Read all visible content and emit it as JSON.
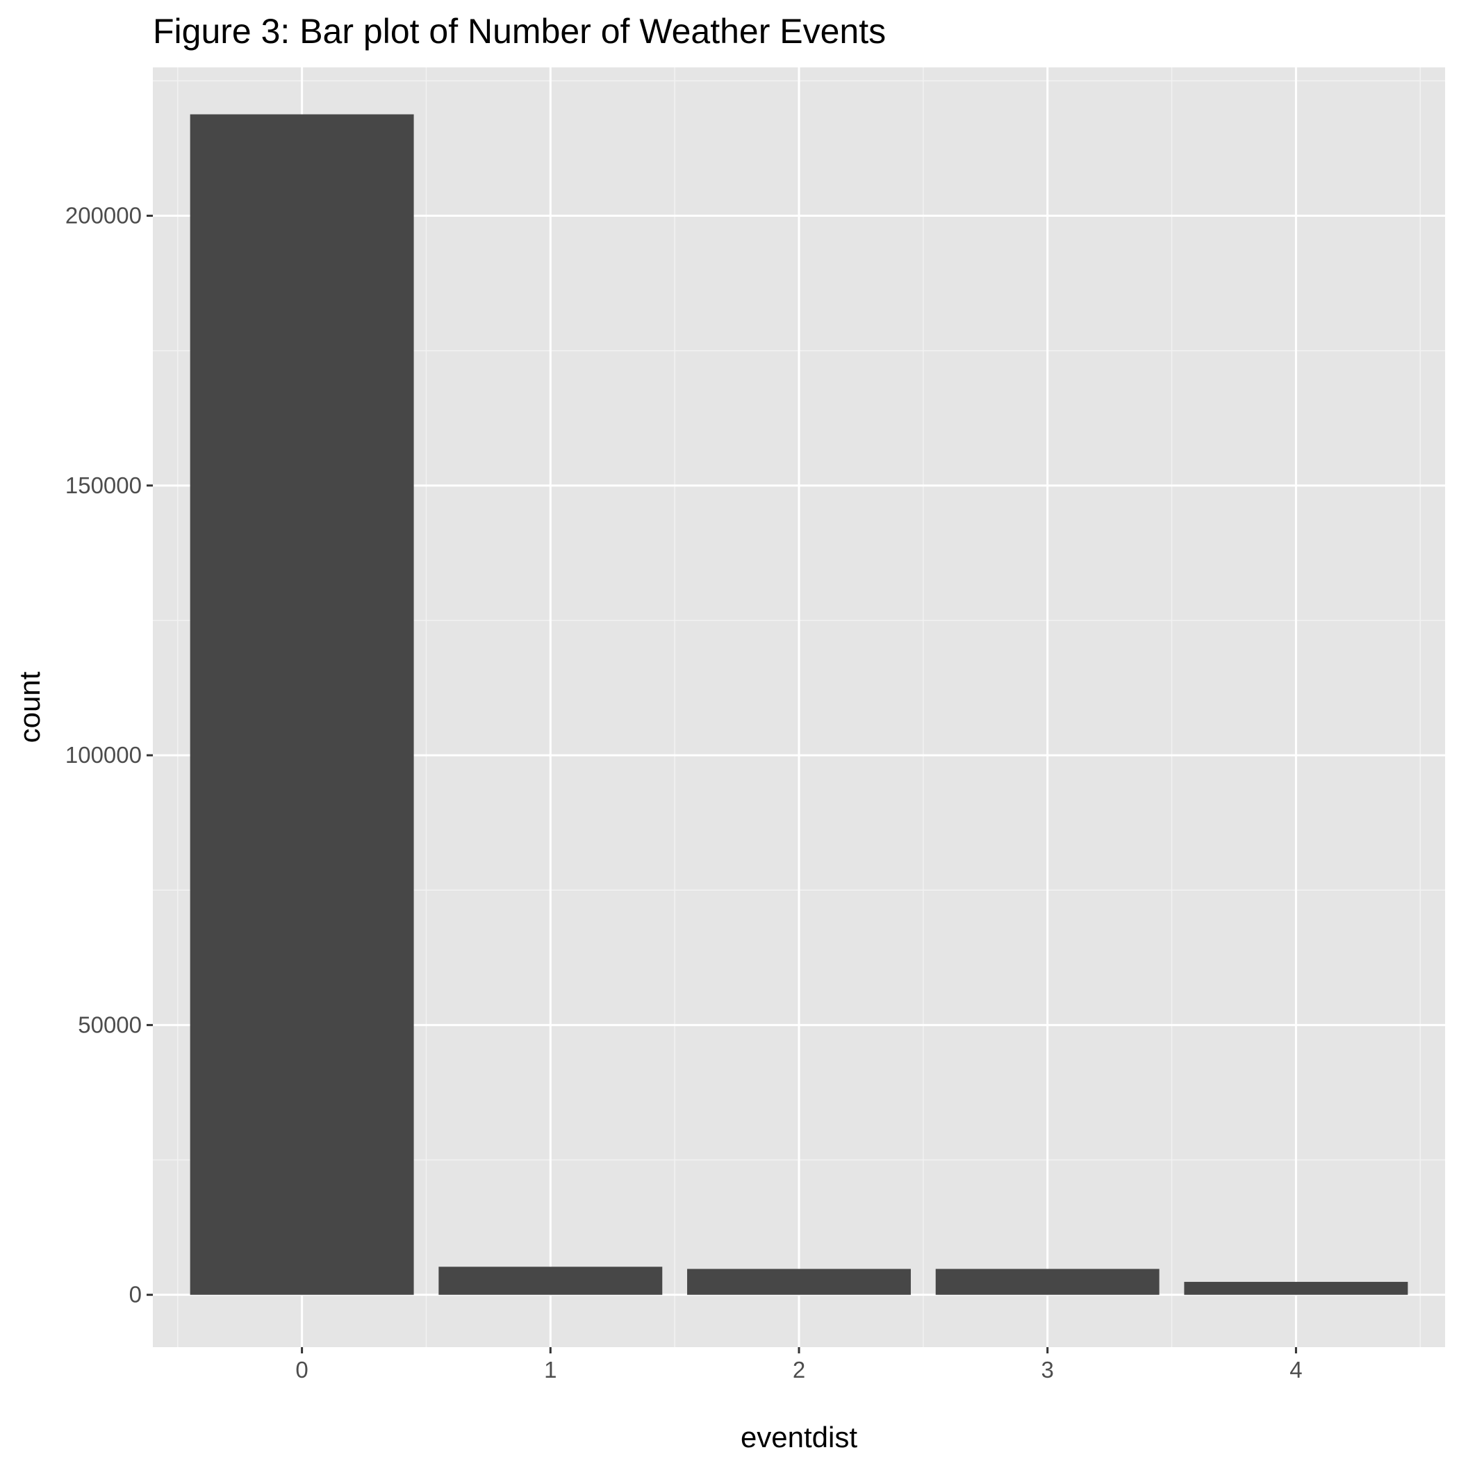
{
  "chart_data": {
    "type": "bar",
    "title": "Figure 3: Bar plot of Number of Weather Events",
    "xlabel": "eventdist",
    "ylabel": "count",
    "categories": [
      "0",
      "1",
      "2",
      "3",
      "4"
    ],
    "values": [
      218800,
      5200,
      4800,
      4800,
      2400
    ],
    "ylim": [
      -9700,
      227500
    ],
    "y_ticks": [
      0,
      50000,
      100000,
      150000,
      200000
    ],
    "y_tick_labels": [
      "0",
      "50000",
      "100000",
      "150000",
      "200000"
    ],
    "grid": true,
    "legend": "none",
    "colors": {
      "bar_fill": "#474747",
      "panel_background": "#e5e5e5",
      "grid_major": "#ffffff",
      "grid_minor": "#f2f2f2",
      "tick_label": "#4d4d4d",
      "axis_title": "#000000"
    }
  }
}
